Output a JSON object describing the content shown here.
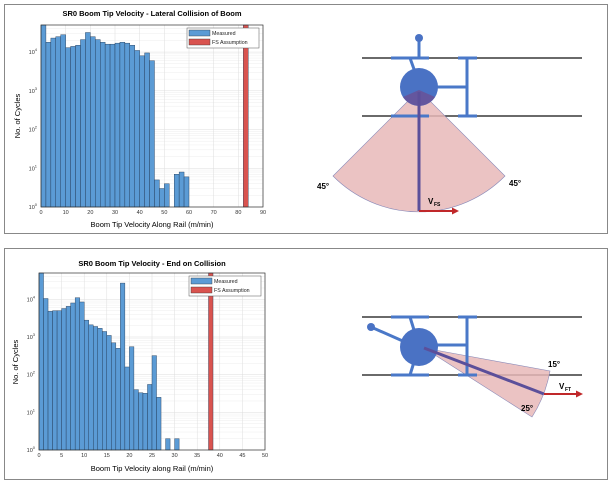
{
  "chart_data": [
    {
      "type": "bar",
      "title": "SR0 Boom Tip Velocity - Lateral Collision of Boom",
      "xlabel": "Boom Tip Velocity Along Rail (m/min)",
      "ylabel": "No. of Cycles",
      "xlim": [
        0,
        90
      ],
      "ylim": [
        1,
        50000
      ],
      "yscale": "log",
      "grid": true,
      "legend_position": "top-right",
      "xticks": [
        "0",
        "10",
        "20",
        "30",
        "40",
        "50",
        "60",
        "70",
        "80",
        "90"
      ],
      "yticks": [
        "10^0",
        "10^1",
        "10^2",
        "10^3",
        "10^4"
      ],
      "series": [
        {
          "name": "Measured",
          "color": "#5b9bd5",
          "bin_width": 2,
          "bin_start": [
            0,
            2,
            4,
            6,
            8,
            10,
            12,
            14,
            16,
            18,
            20,
            22,
            24,
            26,
            28,
            30,
            32,
            34,
            36,
            38,
            40,
            42,
            44,
            46,
            48,
            50,
            54,
            56,
            58
          ],
          "values": [
            50000,
            18000,
            23000,
            25000,
            28000,
            13000,
            14000,
            15000,
            21000,
            32000,
            25000,
            21000,
            18000,
            16000,
            16000,
            17000,
            18000,
            17000,
            15000,
            11000,
            8000,
            9500,
            6000,
            5,
            3,
            4,
            7,
            8,
            6
          ]
        },
        {
          "name": "FS Assumption",
          "color": "#d9534f",
          "bin_width": 2,
          "bin_start": [
            82
          ],
          "values": [
            50000
          ]
        }
      ],
      "diagram": {
        "angle_left": "45°",
        "angle_right": "45°",
        "velocity_label": "V",
        "velocity_sub": "FS"
      }
    },
    {
      "type": "bar",
      "title": "SR0 Boom Tip Velocity - End on Collision",
      "xlabel": "Boom Tip Velocity along Rail (m/min)",
      "ylabel": "No. of Cycles",
      "xlim": [
        0,
        50
      ],
      "ylim": [
        1,
        50000
      ],
      "yscale": "log",
      "grid": true,
      "legend_position": "top-right",
      "xticks": [
        "0",
        "5",
        "10",
        "15",
        "20",
        "25",
        "30",
        "35",
        "40",
        "45",
        "50"
      ],
      "yticks": [
        "10^0",
        "10^1",
        "10^2",
        "10^3",
        "10^4"
      ],
      "series": [
        {
          "name": "Measured",
          "color": "#5b9bd5",
          "bin_width": 1,
          "bin_start": [
            0,
            1,
            2,
            3,
            4,
            5,
            6,
            7,
            8,
            9,
            10,
            11,
            12,
            13,
            14,
            15,
            16,
            17,
            18,
            19,
            20,
            21,
            22,
            23,
            24,
            25,
            26,
            28,
            30
          ],
          "values": [
            50000,
            10500,
            4800,
            5000,
            5000,
            5700,
            6500,
            8000,
            11000,
            8500,
            2800,
            2100,
            1900,
            1700,
            1400,
            1100,
            700,
            500,
            27000,
            160,
            550,
            40,
            33,
            32,
            55,
            320,
            25,
            2,
            2
          ]
        },
        {
          "name": "FS Assumption",
          "color": "#d9534f",
          "bin_width": 1,
          "bin_start": [
            37.5
          ],
          "values": [
            50000
          ]
        }
      ],
      "diagram": {
        "angle_top": "15°",
        "angle_bottom": "25°",
        "velocity_label": "V",
        "velocity_sub": "FT"
      }
    }
  ]
}
